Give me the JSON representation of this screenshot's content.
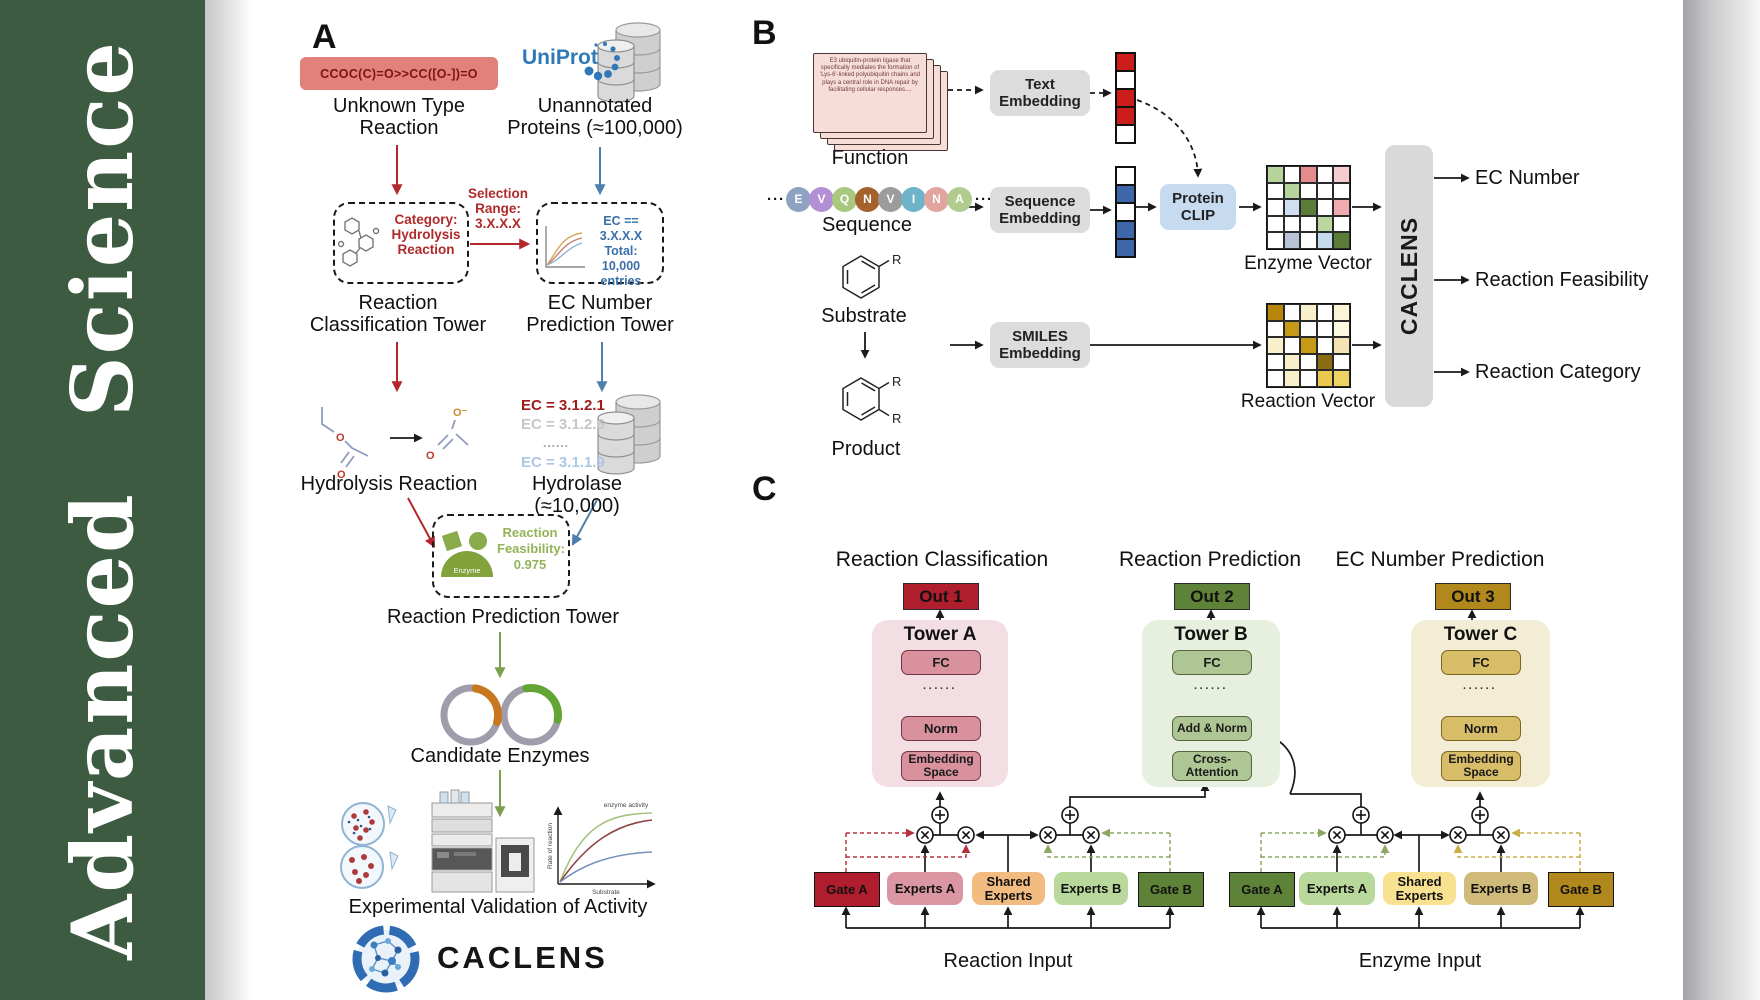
{
  "journal": {
    "title": "Advanced Science"
  },
  "panel_a": {
    "label": "A",
    "smiles": "CCOC(C)=O>>CC([O-])=O",
    "unknown_line1": "Unknown Type",
    "unknown_line2": "Reaction",
    "uniprot": "UniProt",
    "unannotated_line1": "Unannotated",
    "unannotated_line2": "Proteins (≈100,000)",
    "category_line1": "Category:",
    "category_line2": "Hydrolysis",
    "category_line3": "Reaction",
    "selection_line1": "Selection",
    "selection_line2": "Range:",
    "selection_line3": "3.X.X.X",
    "ec_line1": "EC == 3.X.X.X",
    "ec_line2": "Total: 10,000",
    "ec_line3": "entries",
    "tower1_line1": "Reaction",
    "tower1_line2": "Classification Tower",
    "tower2_line1": "EC Number",
    "tower2_line2": "Prediction Tower",
    "hydrolysis_label": "Hydrolysis Reaction",
    "ec_list": [
      "EC = 3.1.2.1",
      "EC = 3.1.2.6",
      "......",
      "EC = 3.1.1.9"
    ],
    "hydrolase_label": "Hydrolase (≈10,000)",
    "enzyme_badge": "Enzyme",
    "feas_line1": "Reaction",
    "feas_line2": "Feasibility:",
    "feas_line3": "0.975",
    "tower3_label": "Reaction Pr‌ediction Tower",
    "candidates_label": "Candidate Enzymes",
    "graph": {
      "curve": "enzyme activity",
      "ylabel": "Rate of reaction",
      "xlabel": "Substrate"
    },
    "validation_label": "Experimental Validation of Activity",
    "brand": "CACLENS",
    "atom_o": "O",
    "atom_o_minus": "O⁻"
  },
  "panel_b": {
    "label": "B",
    "function_text": "E3 ubiquitin-protein ligase that specifically mediates the formation of 'Lys-6'-linked polyubiquitin chains and plays a central role in DNA repair by facilitating cellular responses....",
    "function_label": "Function",
    "seq_dots": "···",
    "sequence_letters": [
      {
        "ch": "E",
        "color": "#8ea3c2"
      },
      {
        "ch": "V",
        "color": "#b48fd6"
      },
      {
        "ch": "Q",
        "color": "#a9c87f"
      },
      {
        "ch": "N",
        "color": "#a5622d"
      },
      {
        "ch": "V",
        "color": "#9c9c9c"
      },
      {
        "ch": "I",
        "color": "#6fb3c9"
      },
      {
        "ch": "N",
        "color": "#e2a49e"
      },
      {
        "ch": "A",
        "color": "#b2cb8e"
      }
    ],
    "sequence_label": "Sequence",
    "substrate_label": "Substrate",
    "product_label": "Product",
    "r_group": "R",
    "text_embedding": "Text Embedding",
    "sequence_embedding": "Sequence Embedding",
    "smiles_embedding": "SMILES Embedding",
    "protein_clip": "Protein CLIP",
    "text_vector_cells": [
      "#cc1d1d",
      "#ffffff",
      "#cc1d1d",
      "#cc1d1d",
      "#ffffff"
    ],
    "seq_vector_cells": [
      "#ffffff",
      "#3e66a8",
      "#ffffff",
      "#3e66a8",
      "#3e66a8"
    ],
    "enzyme_vector_cells": [
      [
        "#b7d49c",
        "#ffffff",
        "#e58b8d",
        "#ffffff",
        "#f5cdd1"
      ],
      [
        "#ffffff",
        "#b7d49c",
        "#ffffff",
        "#ffffff",
        "#ffffff"
      ],
      [
        "#ffffff",
        "#cfdff1",
        "#5c7d3a",
        "#ffffff",
        "#f2abb0"
      ],
      [
        "#ffffff",
        "#ffffff",
        "#ffffff",
        "#bcd8a0",
        "#ffffff"
      ],
      [
        "#ffffff",
        "#b9c3d6",
        "#ffffff",
        "#c6daee",
        "#5c7d3a"
      ]
    ],
    "reaction_vector_cells": [
      [
        "#b8860b",
        "#ffffff",
        "#f8f0ca",
        "#ffffff",
        "#fbf4d6"
      ],
      [
        "#ffffff",
        "#c49a16",
        "#ffffff",
        "#ffffff",
        "#fdf8e0"
      ],
      [
        "#f8f0ca",
        "#ffffff",
        "#c49a16",
        "#ffffff",
        "#f2e2b4"
      ],
      [
        "#ffffff",
        "#f8f0ca",
        "#ffffff",
        "#8a6d12",
        "#ffffff"
      ],
      [
        "#ffffff",
        "#f8f0ca",
        "#ffffff",
        "#ecc94e",
        "#eed262"
      ]
    ],
    "enzyme_vector_label": "Enzyme Vector",
    "reaction_vector_label": "Reaction Vector",
    "caclens_bar": "CACLENS",
    "outputs": [
      "EC Number",
      "Reaction Feasibility",
      "Reaction Category"
    ]
  },
  "panel_c": {
    "label": "C",
    "headings": [
      "Reaction Classification",
      "Reaction Prediction",
      "EC Number Prediction"
    ],
    "outs": [
      "Out 1",
      "Out 2",
      "Out 3"
    ],
    "tower_a_title": "Tower A",
    "tower_b_title": "Tower B",
    "tower_c_title": "Tower C",
    "fc": "FC",
    "dots": "······",
    "norm": "Norm",
    "add_norm": "Add & Norm",
    "embedding_space_line1": "Embedding",
    "embedding_space_line2": "Space",
    "cross_attention_line1": "Cross-",
    "cross_attention_line2": "Attention",
    "gate_a": "Gate A",
    "experts_a": "Experts A",
    "shared_line1": "Shared",
    "shared_line2": "Experts",
    "experts_b": "Experts B",
    "gate_b": "Gate B",
    "reaction_input": "Reaction Input",
    "enzyme_input": "Enzyme Input"
  },
  "colors": {
    "sidebar_green": "#3d5b40",
    "red_accent": "#b3282d",
    "blue_accent": "#4d7fac",
    "green_accent": "#7d9e4a",
    "out1": "#b01e2e",
    "out2": "#5e8238",
    "out3": "#b1881c"
  }
}
